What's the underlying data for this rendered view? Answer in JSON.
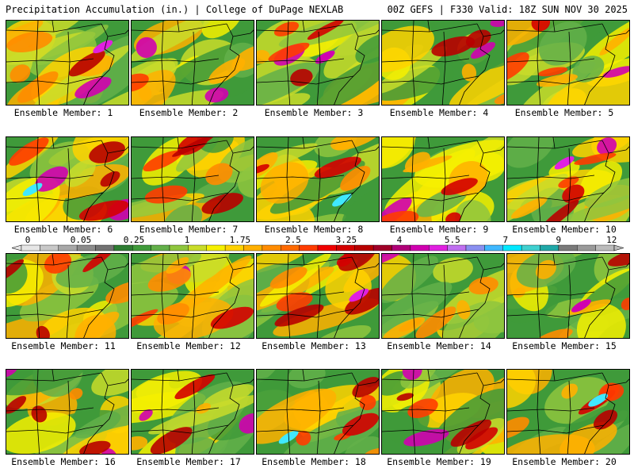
{
  "header": {
    "left": "Precipitation Accumulation (in.) | College of DuPage NEXLAB",
    "right": "00Z GEFS | F330 Valid: 18Z SUN NOV 30 2025"
  },
  "panels": [
    {
      "label": "Ensemble Member: 1"
    },
    {
      "label": "Ensemble Member: 2"
    },
    {
      "label": "Ensemble Member: 3"
    },
    {
      "label": "Ensemble Member: 4"
    },
    {
      "label": "Ensemble Member: 5"
    },
    {
      "label": "Ensemble Member: 6"
    },
    {
      "label": "Ensemble Member: 7"
    },
    {
      "label": "Ensemble Member: 8"
    },
    {
      "label": "Ensemble Member: 9"
    },
    {
      "label": "Ensemble Member: 10"
    },
    {
      "label": "Ensemble Member: 11"
    },
    {
      "label": "Ensemble Member: 12"
    },
    {
      "label": "Ensemble Member: 13"
    },
    {
      "label": "Ensemble Member: 14"
    },
    {
      "label": "Ensemble Member: 15"
    },
    {
      "label": "Ensemble Member: 16"
    },
    {
      "label": "Ensemble Member: 17"
    },
    {
      "label": "Ensemble Member: 18"
    },
    {
      "label": "Ensemble Member: 19"
    },
    {
      "label": "Ensemble Member: 20"
    }
  ],
  "colorbar": {
    "labels": [
      "0",
      "0.05",
      "0.25",
      "1",
      "1.75",
      "2.5",
      "3.25",
      "4",
      "5.5",
      "7",
      "9",
      "12"
    ],
    "colors": [
      "#e6e6e6",
      "#c8c8c8",
      "#a8a8a8",
      "#8c8c8c",
      "#727272",
      "#2e7d32",
      "#3f9a3a",
      "#63b04a",
      "#8fc63e",
      "#c9dc2a",
      "#f6f000",
      "#ffd200",
      "#ffb000",
      "#ff8c00",
      "#ff6a00",
      "#ff3c00",
      "#f00000",
      "#d40000",
      "#b80000",
      "#a00028",
      "#b00078",
      "#d000b0",
      "#e020e0",
      "#c070f0",
      "#8a90f0",
      "#40b8ff",
      "#00e8ff",
      "#40d0d0",
      "#20a8a8",
      "#7a7a7a",
      "#9a9a9a",
      "#bcbcbc"
    ]
  }
}
